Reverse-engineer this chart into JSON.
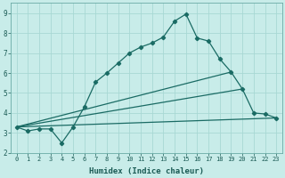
{
  "xlabel": "Humidex (Indice chaleur)",
  "ylabel": "",
  "bg_color": "#c8ece9",
  "grid_color": "#a8d8d4",
  "line_color": "#1a6b64",
  "xlim": [
    -0.5,
    23.5
  ],
  "ylim": [
    2,
    9.5
  ],
  "xtick_labels": [
    "0",
    "1",
    "2",
    "3",
    "4",
    "5",
    "6",
    "7",
    "8",
    "9",
    "10",
    "11",
    "12",
    "13",
    "14",
    "15",
    "16",
    "17",
    "18",
    "19",
    "20",
    "21",
    "22",
    "23"
  ],
  "ytick_labels": [
    "2",
    "3",
    "4",
    "5",
    "6",
    "7",
    "8",
    "9"
  ],
  "curve1_x": [
    0,
    1,
    2,
    3,
    4,
    5,
    6,
    7,
    8,
    9,
    10,
    11,
    12,
    13,
    14,
    15,
    16,
    17,
    18,
    19,
    20,
    21,
    22,
    23
  ],
  "curve1_y": [
    3.3,
    3.1,
    3.2,
    3.2,
    2.5,
    3.3,
    4.3,
    5.55,
    6.0,
    6.5,
    7.0,
    7.3,
    7.5,
    7.8,
    8.6,
    8.95,
    7.75,
    7.6,
    6.7,
    6.05,
    5.2,
    4.0,
    3.95,
    3.75
  ],
  "curve2_x": [
    0,
    23
  ],
  "curve2_y": [
    3.3,
    3.75
  ],
  "curve3_x": [
    0,
    20
  ],
  "curve3_y": [
    3.3,
    5.2
  ],
  "curve4_x": [
    0,
    19
  ],
  "curve4_y": [
    3.3,
    6.05
  ],
  "label_fontsize": 5.0,
  "xlabel_fontsize": 6.5,
  "linewidth": 0.9,
  "markersize": 2.2
}
